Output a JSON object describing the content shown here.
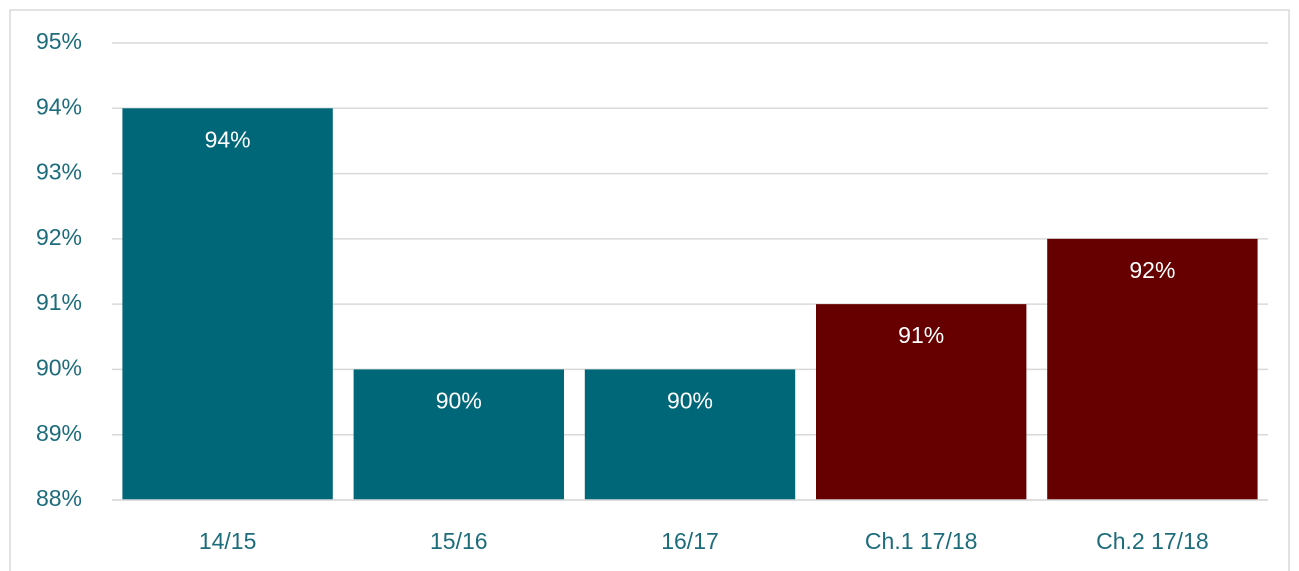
{
  "chart_data": {
    "type": "bar",
    "categories": [
      "14/15",
      "15/16",
      "16/17",
      "Ch.1 17/18",
      "Ch.2 17/18"
    ],
    "values": [
      94,
      90,
      90,
      91,
      92
    ],
    "value_labels": [
      "94%",
      "90%",
      "90%",
      "91%",
      "92%"
    ],
    "colors": [
      "#006779",
      "#006779",
      "#006779",
      "#660000",
      "#660000"
    ],
    "ylim": [
      88,
      95
    ],
    "yticks": [
      {
        "value": 88,
        "label": "88%"
      },
      {
        "value": 89,
        "label": "89%"
      },
      {
        "value": 90,
        "label": "90%"
      },
      {
        "value": 91,
        "label": "91%"
      },
      {
        "value": 92,
        "label": "92%"
      },
      {
        "value": 93,
        "label": "93%"
      },
      {
        "value": 94,
        "label": "94%"
      },
      {
        "value": 95,
        "label": "95%"
      }
    ],
    "grid": true
  }
}
